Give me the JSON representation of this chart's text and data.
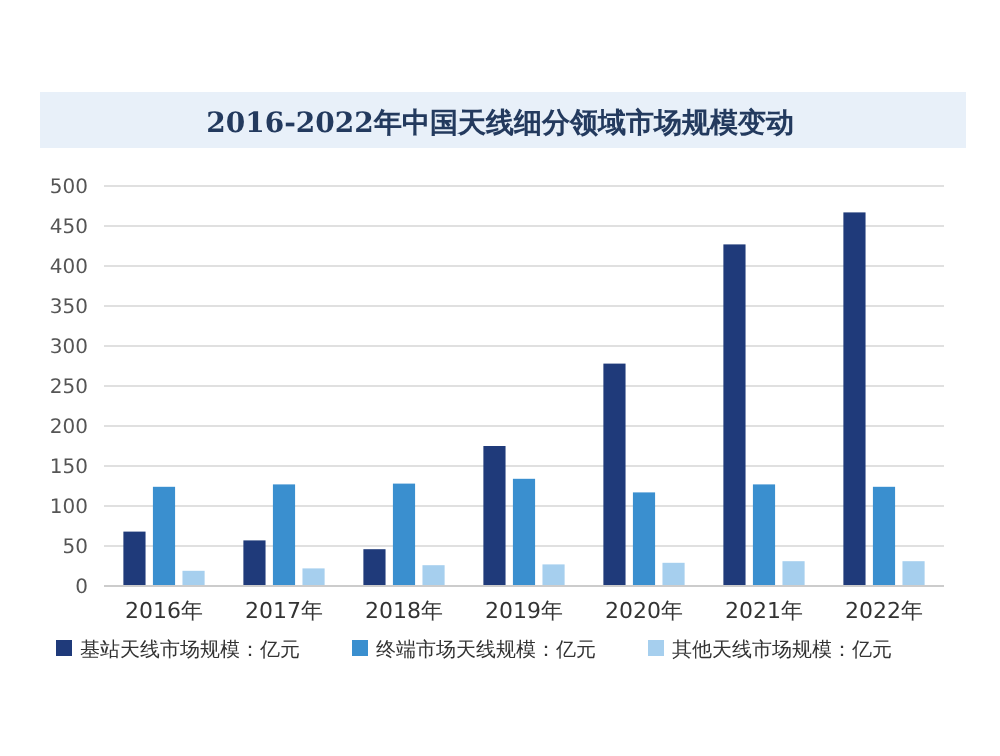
{
  "chart_data": {
    "type": "bar",
    "title": "2016-2022年中国天线细分领域市场规模变动",
    "categories": [
      "2016年",
      "2017年",
      "2018年",
      "2019年",
      "2020年",
      "2021年",
      "2022年"
    ],
    "series": [
      {
        "name": "基站天线市场规模：亿元",
        "color": "#1f3a7a",
        "values": [
          68,
          57,
          46,
          175,
          278,
          427,
          467
        ]
      },
      {
        "name": "终端市场天线规模：亿元",
        "color": "#3a8fcf",
        "values": [
          124,
          127,
          128,
          134,
          117,
          127,
          124
        ]
      },
      {
        "name": "其他天线市场规模：亿元",
        "color": "#a6cfee",
        "values": [
          19,
          22,
          26,
          27,
          29,
          31,
          31
        ]
      }
    ],
    "ylim": [
      0,
      500
    ],
    "yticks": [
      0,
      50,
      100,
      150,
      200,
      250,
      300,
      350,
      400,
      450,
      500
    ],
    "grid": "y",
    "legend": "bottom"
  }
}
